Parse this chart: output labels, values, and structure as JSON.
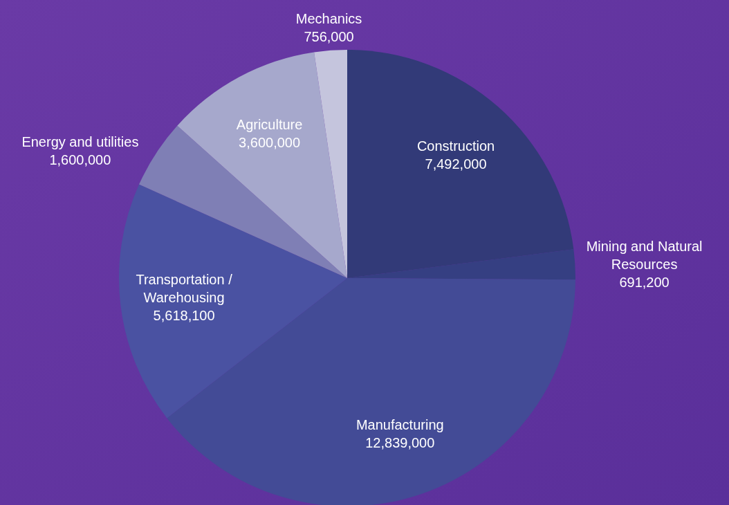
{
  "chart_data": {
    "type": "pie",
    "categories": [
      "Construction",
      "Mining and Natural Resources",
      "Manufacturing",
      "Transportation / Warehousing",
      "Energy and utilities",
      "Agriculture",
      "Mechanics"
    ],
    "values": [
      7492000,
      691200,
      12839000,
      5618100,
      1600000,
      3600000,
      756000
    ],
    "colors": [
      "#323a78",
      "#353f82",
      "#434b96",
      "#4a52a2",
      "#7f7fb5",
      "#a6a8cc",
      "#c5c5dd"
    ],
    "value_labels": [
      "7,492,000",
      "691,200",
      "12,839,000",
      "5,618,100",
      "1,600,000",
      "3,600,000",
      "756,000"
    ]
  }
}
